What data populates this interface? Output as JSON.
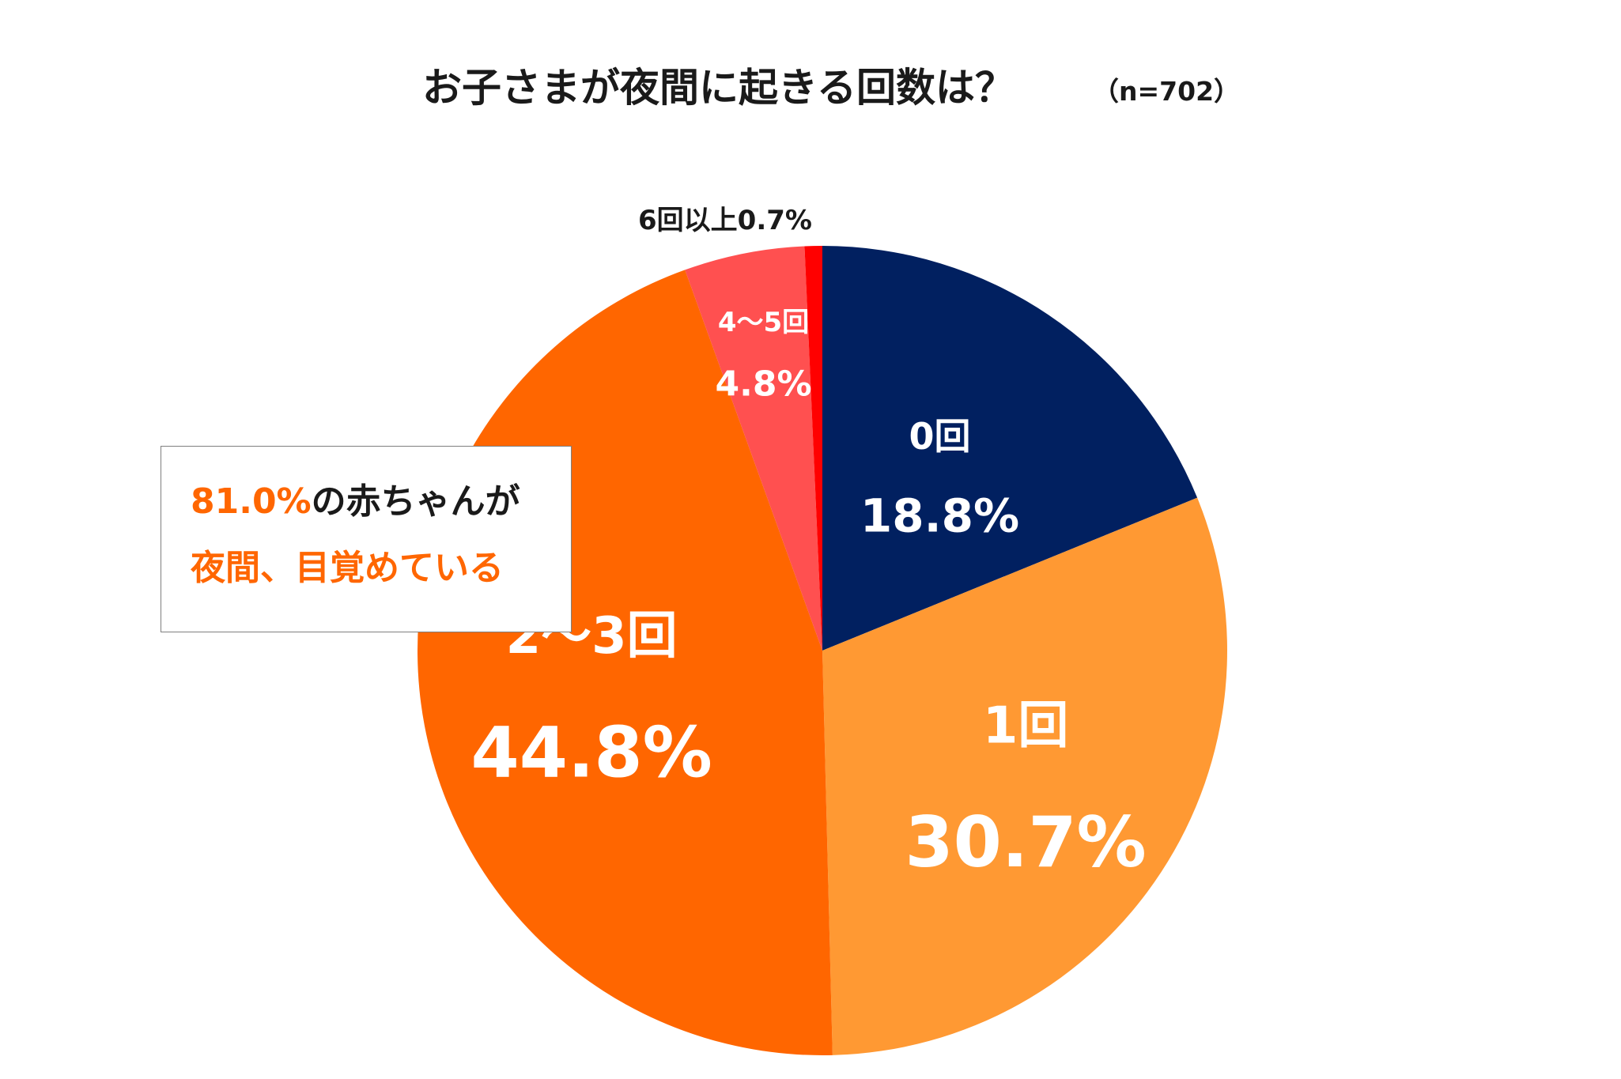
{
  "title": "お子さまが夜間に起きる回数は？",
  "sample_size": "（n=702）",
  "colors": {
    "slice_0": "#012060",
    "slice_1": "#ff9933",
    "slice_2_3": "#ff6600",
    "slice_4_5": "#ff5050",
    "slice_6_plus": "#ff0000",
    "accent_text": "#ff6600"
  },
  "chart_data": {
    "type": "pie",
    "title": "お子さまが夜間に起きる回数は？",
    "subtitle": "（n=702）",
    "start_angle": "12 o'clock",
    "direction": "clockwise",
    "categories": [
      "0回",
      "1回",
      "2～3回",
      "4～5回",
      "6回以上"
    ],
    "values": [
      18.8,
      30.7,
      44.8,
      4.8,
      0.7
    ],
    "value_labels": [
      "18.8%",
      "30.7%",
      "44.8%",
      "4.8%",
      "0.7%"
    ],
    "unit": "%"
  },
  "outside_label": "6回以上0.7%",
  "callout": {
    "line1_accent": "81.0%",
    "line1_rest": "の赤ちゃんが",
    "line2": "夜間、目覚めている"
  }
}
